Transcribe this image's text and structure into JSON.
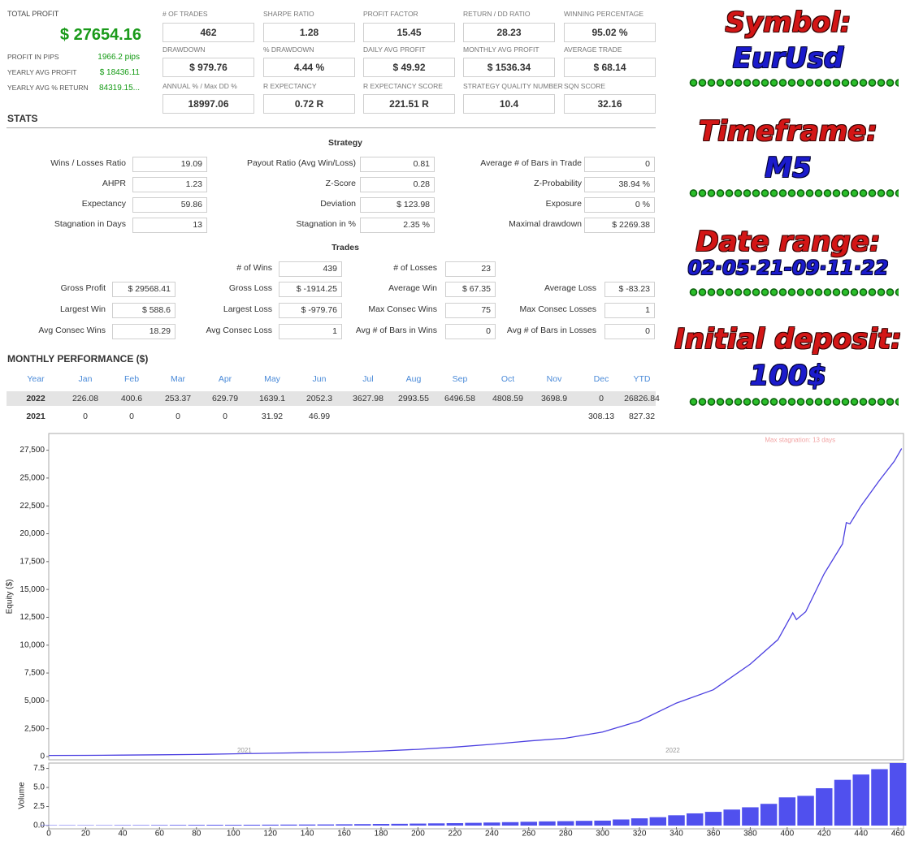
{
  "summary": {
    "total_profit_label": "TOTAL PROFIT",
    "total_profit": "$ 27654.16",
    "rows": [
      {
        "label": "PROFIT IN PIPS",
        "value": "1966.2 pips"
      },
      {
        "label": "YEARLY AVG PROFIT",
        "value": "$ 18436.11"
      },
      {
        "label": "YEARLY AVG % RETURN",
        "value": "84319.15..."
      }
    ]
  },
  "metrics": [
    [
      {
        "label": "# OF TRADES",
        "value": "462"
      },
      {
        "label": "SHARPE RATIO",
        "value": "1.28"
      },
      {
        "label": "PROFIT FACTOR",
        "value": "15.45"
      },
      {
        "label": "RETURN / DD RATIO",
        "value": "28.23"
      },
      {
        "label": "WINNING PERCENTAGE",
        "value": "95.02 %"
      }
    ],
    [
      {
        "label": "DRAWDOWN",
        "value": "$ 979.76"
      },
      {
        "label": "% DRAWDOWN",
        "value": "4.44 %"
      },
      {
        "label": "DAILY AVG PROFIT",
        "value": "$ 49.92"
      },
      {
        "label": "MONTHLY AVG PROFIT",
        "value": "$ 1536.34"
      },
      {
        "label": "AVERAGE TRADE",
        "value": "$ 68.14"
      }
    ],
    [
      {
        "label": "ANNUAL % / Max DD %",
        "value": "18997.06"
      },
      {
        "label": "R EXPECTANCY",
        "value": "0.72 R"
      },
      {
        "label": "R EXPECTANCY SCORE",
        "value": "221.51 R"
      },
      {
        "label": "STRATEGY QUALITY NUMBER",
        "value": "10.4"
      },
      {
        "label": "SQN SCORE",
        "value": "32.16"
      }
    ]
  ],
  "stats": {
    "title": "STATS",
    "strategy": {
      "title": "Strategy",
      "rows": [
        [
          {
            "label": "Wins / Losses Ratio",
            "value": "19.09"
          },
          {
            "label": "Payout Ratio (Avg Win/Loss)",
            "value": "0.81"
          },
          {
            "label": "Average # of Bars in Trade",
            "value": "0"
          }
        ],
        [
          {
            "label": "AHPR",
            "value": "1.23"
          },
          {
            "label": "Z-Score",
            "value": "0.28"
          },
          {
            "label": "Z-Probability",
            "value": "38.94 %"
          }
        ],
        [
          {
            "label": "Expectancy",
            "value": "59.86"
          },
          {
            "label": "Deviation",
            "value": "$ 123.98"
          },
          {
            "label": "Exposure",
            "value": "0 %"
          }
        ],
        [
          {
            "label": "Stagnation in Days",
            "value": "13"
          },
          {
            "label": "Stagnation in %",
            "value": "2.35 %"
          },
          {
            "label": "Maximal drawdown",
            "value": "$ 2269.38"
          }
        ]
      ]
    },
    "trades": {
      "title": "Trades",
      "first_row": [
        {
          "label": "# of Wins",
          "value": "439"
        },
        {
          "label": "# of Losses",
          "value": "23"
        }
      ],
      "rows": [
        [
          {
            "label": "Gross Profit",
            "value": "$ 29568.41"
          },
          {
            "label": "Gross Loss",
            "value": "$ -1914.25"
          },
          {
            "label": "Average Win",
            "value": "$ 67.35"
          },
          {
            "label": "Average Loss",
            "value": "$ -83.23"
          }
        ],
        [
          {
            "label": "Largest Win",
            "value": "$ 588.6"
          },
          {
            "label": "Largest Loss",
            "value": "$ -979.76"
          },
          {
            "label": "Max Consec Wins",
            "value": "75"
          },
          {
            "label": "Max Consec Losses",
            "value": "1"
          }
        ],
        [
          {
            "label": "Avg Consec Wins",
            "value": "18.29"
          },
          {
            "label": "Avg Consec Loss",
            "value": "1"
          },
          {
            "label": "Avg # of Bars in Wins",
            "value": "0"
          },
          {
            "label": "Avg # of Bars in Losses",
            "value": "0"
          }
        ]
      ]
    }
  },
  "monthly": {
    "title": "MONTHLY PERFORMANCE ($)",
    "header": [
      "Year",
      "Jan",
      "Feb",
      "Mar",
      "Apr",
      "May",
      "Jun",
      "Jul",
      "Aug",
      "Sep",
      "Oct",
      "Nov",
      "Dec",
      "YTD"
    ],
    "rows": [
      [
        "2022",
        "226.08",
        "400.6",
        "253.37",
        "629.79",
        "1639.1",
        "2052.3",
        "3627.98",
        "2993.55",
        "6496.58",
        "4808.59",
        "3698.9",
        "0",
        "26826.84"
      ],
      [
        "2021",
        "0",
        "0",
        "0",
        "0",
        "31.92",
        "46.99",
        null,
        null,
        null,
        null,
        null,
        "308.13",
        "827.32"
      ]
    ]
  },
  "side": [
    {
      "label": "Symbol:",
      "value": "EurUsd"
    },
    {
      "label": "Timeframe:",
      "value": "M5"
    },
    {
      "label": "Date range:",
      "value": "02·05·21-09·11·22"
    },
    {
      "label": "Initial deposit:",
      "value": "100$"
    }
  ],
  "chart_data": [
    {
      "type": "line",
      "ylabel": "Equity ($)",
      "color": "#4b3fe0",
      "x": [
        0,
        20,
        40,
        60,
        80,
        100,
        120,
        140,
        160,
        180,
        200,
        220,
        240,
        260,
        280,
        300,
        320,
        340,
        360,
        380,
        395,
        403,
        405,
        410,
        420,
        430,
        432,
        434,
        440,
        450,
        458,
        462
      ],
      "values": [
        100,
        110,
        130,
        160,
        190,
        250,
        300,
        350,
        400,
        500,
        650,
        850,
        1100,
        1400,
        1650,
        2200,
        3200,
        4800,
        6000,
        8300,
        10500,
        12900,
        12300,
        13000,
        16400,
        19100,
        21000,
        20900,
        22500,
        24800,
        26500,
        27654
      ],
      "xlim": [
        0,
        463
      ],
      "ylim": [
        0,
        29000
      ],
      "yticks": [
        0,
        {
          "value": 2500,
          "label": "2,500"
        },
        {
          "value": 5000,
          "label": "5,000"
        },
        {
          "value": 7500,
          "label": "7,500"
        },
        {
          "value": 10000,
          "label": "10,000"
        },
        {
          "value": 12500,
          "label": "12,500"
        },
        {
          "value": 15000,
          "label": "15,000"
        },
        {
          "value": 17500,
          "label": "17,500"
        },
        {
          "value": 20000,
          "label": "20,000"
        },
        {
          "value": 22500,
          "label": "22,500"
        },
        {
          "value": 25000,
          "label": "25,000"
        },
        {
          "value": 27500,
          "label": "27,500"
        }
      ],
      "annotations": [
        {
          "text": "2021",
          "x": 106,
          "y": 500
        },
        {
          "text": "2022",
          "x": 338,
          "y": 500
        },
        {
          "text": "Max stagnation: 13 days",
          "x": 407,
          "y": 28400
        }
      ]
    },
    {
      "type": "bar",
      "ylabel": "Volume",
      "color": "#5050ee",
      "x": [
        0,
        10,
        20,
        30,
        40,
        50,
        60,
        70,
        80,
        90,
        100,
        110,
        120,
        130,
        140,
        150,
        160,
        170,
        180,
        190,
        200,
        210,
        220,
        230,
        240,
        250,
        260,
        270,
        280,
        290,
        300,
        310,
        320,
        330,
        340,
        350,
        360,
        370,
        380,
        390,
        400,
        410,
        420,
        430,
        440,
        450,
        460
      ],
      "values": [
        0.05,
        0.05,
        0.05,
        0.05,
        0.06,
        0.06,
        0.07,
        0.08,
        0.09,
        0.1,
        0.1,
        0.11,
        0.12,
        0.13,
        0.14,
        0.15,
        0.17,
        0.19,
        0.21,
        0.23,
        0.26,
        0.29,
        0.32,
        0.36,
        0.4,
        0.45,
        0.5,
        0.55,
        0.58,
        0.62,
        0.65,
        0.8,
        0.95,
        1.1,
        1.35,
        1.6,
        1.8,
        2.1,
        2.4,
        2.85,
        3.7,
        3.9,
        4.9,
        6.0,
        6.7,
        7.4,
        8.2
      ],
      "xlim": [
        0,
        463
      ],
      "ylim": [
        0,
        8.2
      ],
      "xticks": [
        0,
        20,
        40,
        60,
        80,
        100,
        120,
        140,
        160,
        180,
        200,
        220,
        240,
        260,
        280,
        300,
        320,
        340,
        360,
        380,
        400,
        420,
        440,
        460
      ],
      "yticks": [
        {
          "value": 0,
          "label": "0.0"
        },
        {
          "value": 2.5,
          "label": "2.5"
        },
        {
          "value": 5,
          "label": "5.0"
        },
        {
          "value": 7.5,
          "label": "7.5"
        }
      ]
    }
  ]
}
